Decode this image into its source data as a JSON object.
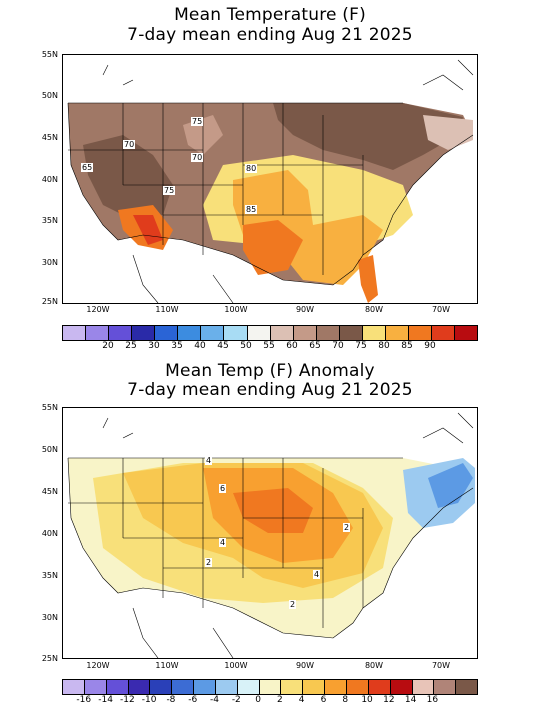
{
  "top_panel": {
    "title_line1": "Mean Temperature (F)",
    "title_line2": "7-day mean ending Aug 21 2025",
    "lat_labels": [
      "55N",
      "50N",
      "45N",
      "40N",
      "35N",
      "30N",
      "25N"
    ],
    "lon_labels": [
      "120W",
      "110W",
      "100W",
      "90W",
      "80W",
      "70W"
    ],
    "contour_labels": [
      "75",
      "70",
      "70",
      "65",
      "80",
      "75",
      "85"
    ],
    "colorbar": {
      "colors": [
        "#c9b8f0",
        "#9a86e8",
        "#6450d8",
        "#2a2aa8",
        "#2a64d6",
        "#3c8ce0",
        "#6ab0ea",
        "#a8dcf4",
        "#f4f4f0",
        "#dcc0b4",
        "#c49a88",
        "#a07866",
        "#7a5848",
        "#f8e07a",
        "#f8b040",
        "#f07820",
        "#e03c1c",
        "#b80c10"
      ],
      "tick_labels": [
        "20",
        "25",
        "30",
        "35",
        "40",
        "45",
        "50",
        "55",
        "60",
        "65",
        "70",
        "75",
        "80",
        "85",
        "90"
      ]
    }
  },
  "bottom_panel": {
    "title_line1": "Mean Temp (F) Anomaly",
    "title_line2": "7-day mean ending Aug 21 2025",
    "lat_labels": [
      "55N",
      "50N",
      "45N",
      "40N",
      "35N",
      "30N",
      "25N"
    ],
    "lon_labels": [
      "120W",
      "110W",
      "100W",
      "90W",
      "80W",
      "70W"
    ],
    "contour_labels": [
      "4",
      "6",
      "4",
      "2",
      "2",
      "4",
      "2"
    ],
    "colorbar": {
      "colors": [
        "#c9b8f0",
        "#9a86e8",
        "#6450d8",
        "#3a2ab0",
        "#2a40b8",
        "#3c6cd4",
        "#5c9ae4",
        "#9ccaf0",
        "#d8f2f8",
        "#f8f4c8",
        "#f8e07a",
        "#f8c850",
        "#f8a030",
        "#f07820",
        "#e03c1c",
        "#b80c10",
        "#e8c4b8",
        "#b08478",
        "#7a5848"
      ],
      "tick_labels": [
        "-16",
        "-14",
        "-12",
        "-10",
        "-8",
        "-6",
        "-4",
        "-2",
        "0",
        "2",
        "4",
        "6",
        "8",
        "10",
        "12",
        "14",
        "16"
      ]
    }
  }
}
